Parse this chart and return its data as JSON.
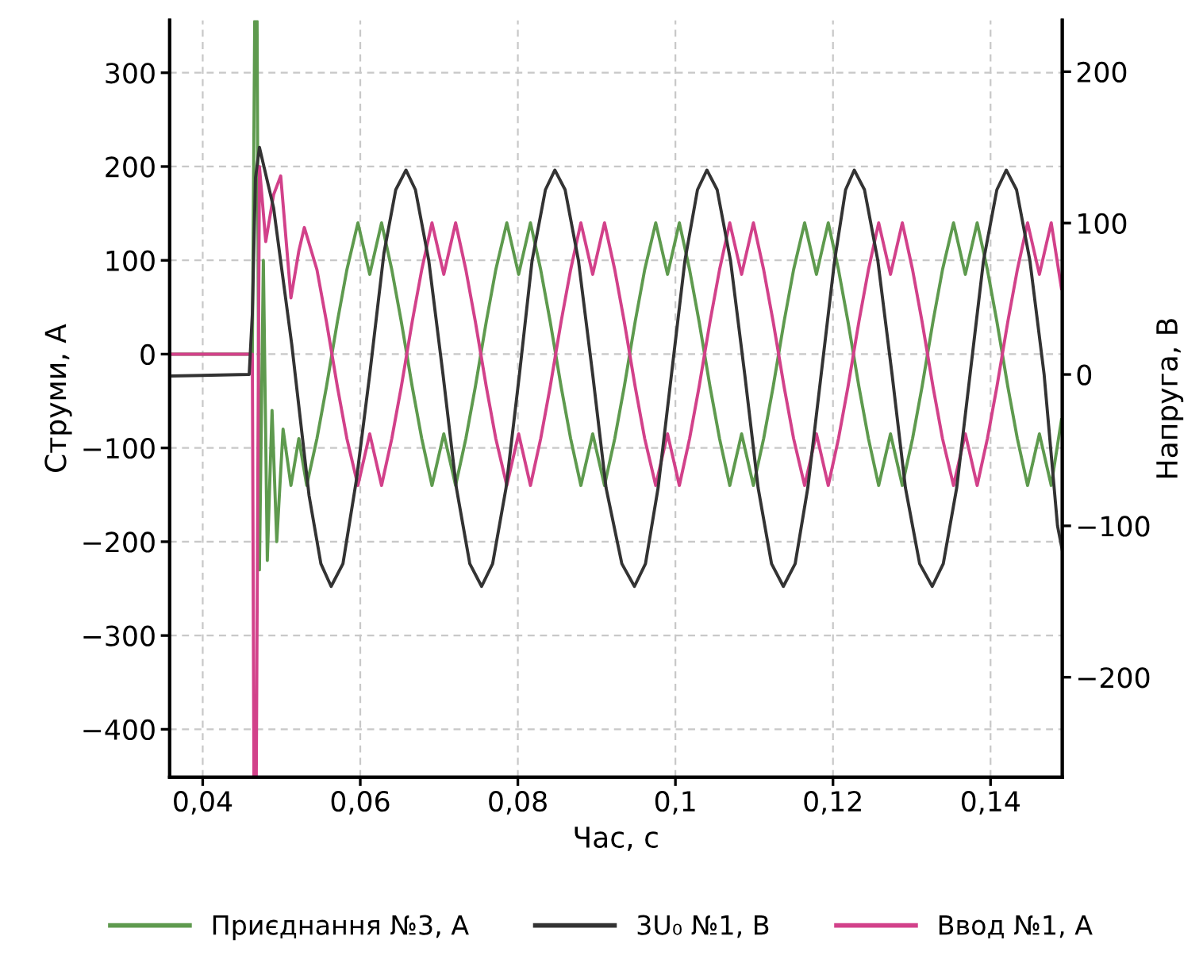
{
  "chart_data": {
    "type": "line",
    "xlabel": "Час, с",
    "ylabel": "Струми, А",
    "y2label": "Напруга, В",
    "xlim": [
      0.0358,
      0.1491
    ],
    "xticks": [
      {
        "value": 0.04,
        "label": "0,04"
      },
      {
        "value": 0.06,
        "label": "0,06"
      },
      {
        "value": 0.08,
        "label": "0,08"
      },
      {
        "value": 0.1,
        "label": "0,1"
      },
      {
        "value": 0.12,
        "label": "0,12"
      },
      {
        "value": 0.14,
        "label": "0,14"
      }
    ],
    "ylim": [
      -451,
      356
    ],
    "yticks": [
      {
        "value": -400,
        "label": "−400"
      },
      {
        "value": -300,
        "label": "−300"
      },
      {
        "value": -200,
        "label": "−200"
      },
      {
        "value": -100,
        "label": "−100"
      },
      0,
      100,
      200,
      300
    ],
    "y2lim": [
      -266,
      234
    ],
    "y2ticks": [
      {
        "value": -200,
        "label": "−200"
      },
      {
        "value": -100,
        "label": "−100"
      },
      0,
      100,
      200
    ],
    "grid": true,
    "legend": "bottom",
    "line_style": "solid",
    "series": [
      {
        "name": "Приєднання №3, А",
        "color": "#5e9a4e",
        "x": [
          0.036,
          0.0463,
          0.0466,
          0.0469,
          0.0472,
          0.0477,
          0.0482,
          0.0488,
          0.0494,
          0.0502,
          0.0512,
          0.0522,
          0.0532,
          0.0545,
          0.0557,
          0.0564,
          0.0571,
          0.0583,
          0.0597,
          0.0612,
          0.0627,
          0.064,
          0.0652,
          0.0659,
          0.0666,
          0.0678,
          0.0691,
          0.0706,
          0.0721,
          0.0734,
          0.0746,
          0.0753,
          0.076,
          0.0772,
          0.0786,
          0.0801,
          0.0816,
          0.0829,
          0.0841,
          0.0848,
          0.0855,
          0.0867,
          0.088,
          0.0895,
          0.091,
          0.0923,
          0.0935,
          0.0942,
          0.0949,
          0.0961,
          0.0975,
          0.099,
          0.1005,
          0.1018,
          0.103,
          0.1037,
          0.1044,
          0.1056,
          0.1069,
          0.1084,
          0.1099,
          0.1112,
          0.1124,
          0.1131,
          0.1138,
          0.115,
          0.1164,
          0.1179,
          0.1194,
          0.1207,
          0.1219,
          0.1226,
          0.1233,
          0.1245,
          0.1258,
          0.1273,
          0.1288,
          0.1301,
          0.1313,
          0.132,
          0.1327,
          0.1339,
          0.1353,
          0.1368,
          0.1383,
          0.1396,
          0.1408,
          0.1415,
          0.1422,
          0.1434,
          0.1447,
          0.1462,
          0.1477,
          0.149
        ],
        "values": [
          0,
          0,
          355,
          355,
          -230,
          100,
          -220,
          -60,
          -200,
          -80,
          -140,
          -90,
          -140,
          -90,
          -35,
          0,
          35,
          90,
          140,
          85,
          140,
          90,
          35,
          0,
          -35,
          -90,
          -140,
          -85,
          -140,
          -90,
          -35,
          0,
          35,
          90,
          140,
          85,
          140,
          90,
          35,
          0,
          -35,
          -90,
          -140,
          -85,
          -140,
          -90,
          -35,
          0,
          35,
          90,
          140,
          85,
          140,
          90,
          35,
          0,
          -35,
          -90,
          -140,
          -85,
          -140,
          -90,
          -35,
          0,
          35,
          90,
          140,
          85,
          140,
          90,
          35,
          0,
          -35,
          -90,
          -140,
          -85,
          -140,
          -90,
          -35,
          0,
          35,
          90,
          140,
          85,
          140,
          90,
          35,
          0,
          -35,
          -90,
          -140,
          -85,
          -140,
          -70
        ]
      },
      {
        "name": "3U₀ №1, В",
        "color": "#333333",
        "axis": "y2",
        "x": [
          0.036,
          0.0459,
          0.0463,
          0.0467,
          0.0472,
          0.049,
          0.0513,
          0.0535,
          0.055,
          0.0563,
          0.0578,
          0.0595,
          0.0612,
          0.063,
          0.0645,
          0.0658,
          0.067,
          0.0687,
          0.0705,
          0.0722,
          0.0739,
          0.0754,
          0.0768,
          0.0785,
          0.0802,
          0.0818,
          0.0835,
          0.0847,
          0.086,
          0.0877,
          0.0895,
          0.0912,
          0.0932,
          0.0948,
          0.0962,
          0.0978,
          0.0995,
          0.1012,
          0.1028,
          0.104,
          0.1053,
          0.107,
          0.1088,
          0.1105,
          0.1122,
          0.1137,
          0.1152,
          0.1168,
          0.1185,
          0.1202,
          0.1216,
          0.1227,
          0.124,
          0.1257,
          0.1275,
          0.1292,
          0.131,
          0.1326,
          0.134,
          0.1357,
          0.1374,
          0.1391,
          0.1408,
          0.142,
          0.1433,
          0.145,
          0.1468,
          0.1485,
          0.1491
        ],
        "values": [
          -1,
          0,
          40,
          130,
          150,
          110,
          20,
          -80,
          -125,
          -140,
          -125,
          -70,
          0,
          80,
          122,
          135,
          122,
          75,
          0,
          -75,
          -125,
          -140,
          -125,
          -75,
          0,
          75,
          122,
          135,
          122,
          75,
          0,
          -75,
          -125,
          -140,
          -125,
          -75,
          0,
          75,
          122,
          135,
          122,
          75,
          0,
          -75,
          -125,
          -140,
          -125,
          -75,
          0,
          75,
          122,
          135,
          122,
          75,
          0,
          -75,
          -125,
          -140,
          -125,
          -75,
          0,
          75,
          122,
          135,
          122,
          75,
          0,
          -100,
          -116
        ]
      },
      {
        "name": "Ввод №1, А",
        "color": "#d2418a",
        "x": [
          0.036,
          0.0463,
          0.0465,
          0.0468,
          0.0472,
          0.048,
          0.049,
          0.0499,
          0.0512,
          0.0522,
          0.0529,
          0.0545,
          0.0557,
          0.0564,
          0.0571,
          0.0583,
          0.0597,
          0.0612,
          0.0627,
          0.064,
          0.0652,
          0.0659,
          0.0666,
          0.0678,
          0.0691,
          0.0706,
          0.0721,
          0.0734,
          0.0746,
          0.0753,
          0.076,
          0.0772,
          0.0786,
          0.0801,
          0.0816,
          0.0829,
          0.0841,
          0.0848,
          0.0855,
          0.0867,
          0.088,
          0.0895,
          0.091,
          0.0923,
          0.0935,
          0.0942,
          0.0949,
          0.0961,
          0.0975,
          0.099,
          0.1005,
          0.1018,
          0.103,
          0.1037,
          0.1044,
          0.1056,
          0.1069,
          0.1084,
          0.1099,
          0.1112,
          0.1124,
          0.1131,
          0.1138,
          0.115,
          0.1164,
          0.1179,
          0.1194,
          0.1207,
          0.1219,
          0.1226,
          0.1233,
          0.1245,
          0.1258,
          0.1273,
          0.1288,
          0.1301,
          0.1313,
          0.132,
          0.1327,
          0.1339,
          0.1353,
          0.1368,
          0.1383,
          0.1396,
          0.1408,
          0.1415,
          0.1422,
          0.1434,
          0.1447,
          0.1462,
          0.1477,
          0.149
        ],
        "values": [
          0,
          0,
          -450,
          -450,
          200,
          120,
          170,
          190,
          60,
          110,
          135,
          90,
          35,
          0,
          -35,
          -90,
          -140,
          -85,
          -140,
          -90,
          -35,
          0,
          35,
          90,
          140,
          85,
          140,
          90,
          35,
          0,
          -35,
          -90,
          -140,
          -85,
          -140,
          -90,
          -35,
          0,
          35,
          90,
          140,
          85,
          140,
          90,
          35,
          0,
          -35,
          -90,
          -140,
          -85,
          -140,
          -90,
          -35,
          0,
          35,
          90,
          140,
          85,
          140,
          90,
          35,
          0,
          -35,
          -90,
          -140,
          -85,
          -140,
          -90,
          -35,
          0,
          35,
          90,
          140,
          85,
          140,
          90,
          35,
          0,
          -35,
          -90,
          -140,
          -85,
          -140,
          -90,
          -35,
          0,
          35,
          90,
          140,
          85,
          140,
          70
        ]
      }
    ]
  }
}
